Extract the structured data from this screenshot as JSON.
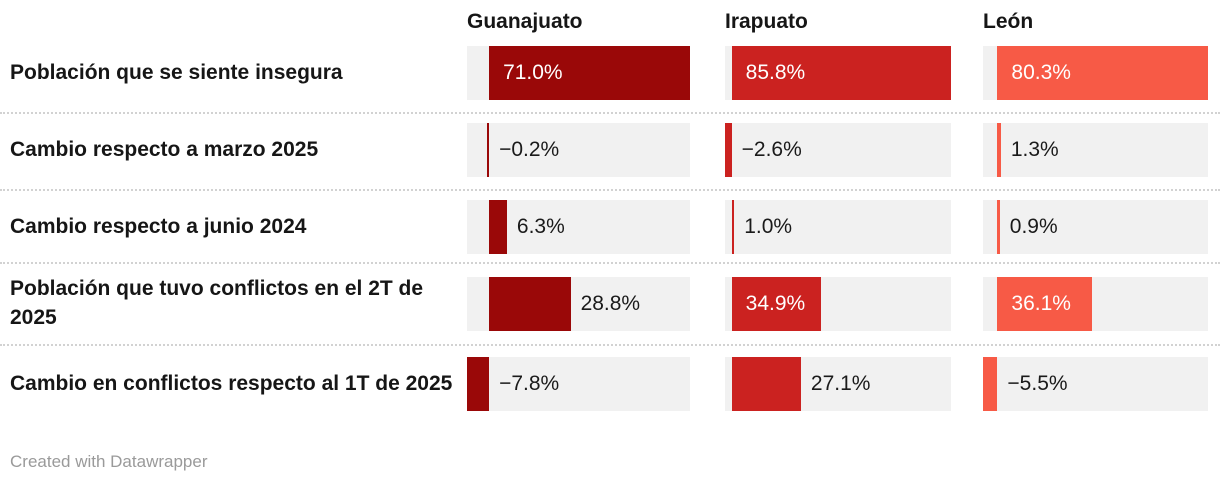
{
  "chart_data": {
    "type": "bar",
    "orientation": "horizontal",
    "unit": "%",
    "grid": false,
    "axis_note": "each column scaled independently from its most negative value to its maximum value",
    "track_color": "#f1f1f1",
    "categories": [
      "Población que se siente insegura",
      "Cambio respecto a marzo 2025",
      "Cambio respecto a junio 2024",
      "Población que tuvo conflictos en el 2T de 2025",
      "Cambio en conflictos respecto al 1T de 2025"
    ],
    "series": [
      {
        "name": "Guanajuato",
        "color": "#9a0808",
        "values": [
          71.0,
          -0.2,
          6.3,
          28.8,
          -7.8
        ],
        "labels": [
          "71.0%",
          "−0.2%",
          "6.3%",
          "28.8%",
          "−7.8%"
        ],
        "label_inside": [
          true,
          false,
          false,
          false,
          false
        ]
      },
      {
        "name": "Irapuato",
        "color": "#cb2220",
        "values": [
          85.8,
          -2.6,
          1.0,
          34.9,
          27.1
        ],
        "labels": [
          "85.8%",
          "−2.6%",
          "1.0%",
          "34.9%",
          "27.1%"
        ],
        "label_inside": [
          true,
          false,
          false,
          true,
          false
        ]
      },
      {
        "name": "León",
        "color": "#f75a46",
        "values": [
          80.3,
          1.3,
          0.9,
          36.1,
          -5.5
        ],
        "labels": [
          "80.3%",
          "1.3%",
          "0.9%",
          "36.1%",
          "−5.5%"
        ],
        "label_inside": [
          true,
          false,
          false,
          true,
          false
        ]
      }
    ],
    "value_text_color_outside": "#1a1a1a",
    "value_text_color_inside": "#ffffff"
  },
  "footer": {
    "credit": "Created with Datawrapper"
  }
}
